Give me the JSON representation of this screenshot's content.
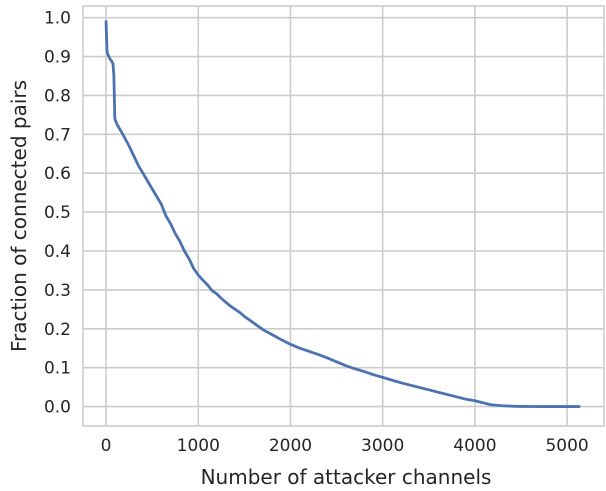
{
  "chart_data": {
    "type": "line",
    "xlabel": "Number of attacker channels",
    "ylabel": "Fraction of connected pairs",
    "xlim": [
      -250,
      5400
    ],
    "ylim": [
      -0.05,
      1.03
    ],
    "xticks": [
      0,
      1000,
      2000,
      3000,
      4000,
      5000
    ],
    "xtick_labels": [
      "0",
      "1000",
      "2000",
      "3000",
      "4000",
      "5000"
    ],
    "yticks": [
      0.0,
      0.1,
      0.2,
      0.3,
      0.4,
      0.5,
      0.6,
      0.7,
      0.8,
      0.9,
      1.0
    ],
    "ytick_labels": [
      "0.0",
      "0.1",
      "0.2",
      "0.3",
      "0.4",
      "0.5",
      "0.6",
      "0.7",
      "0.8",
      "0.9",
      "1.0"
    ],
    "grid": true,
    "series": [
      {
        "color": "#4c72b0",
        "x": [
          0,
          10,
          20,
          40,
          60,
          75,
          85,
          95,
          120,
          170,
          250,
          300,
          350,
          400,
          450,
          500,
          550,
          600,
          650,
          700,
          750,
          800,
          850,
          900,
          950,
          1000,
          1050,
          1100,
          1150,
          1200,
          1250,
          1300,
          1350,
          1400,
          1450,
          1500,
          1600,
          1700,
          1800,
          1900,
          2000,
          2100,
          2200,
          2300,
          2400,
          2500,
          2600,
          2700,
          2800,
          2900,
          3000,
          3100,
          3200,
          3300,
          3400,
          3500,
          3600,
          3700,
          3800,
          3900,
          4000,
          4050,
          4100,
          4150,
          4200,
          4250,
          4300,
          4400,
          4500,
          4600,
          4700,
          4800,
          4900,
          5000,
          5130
        ],
        "y": [
          0.99,
          0.915,
          0.905,
          0.895,
          0.888,
          0.882,
          0.85,
          0.74,
          0.725,
          0.705,
          0.67,
          0.645,
          0.62,
          0.6,
          0.58,
          0.56,
          0.54,
          0.52,
          0.49,
          0.47,
          0.445,
          0.425,
          0.4,
          0.38,
          0.355,
          0.338,
          0.325,
          0.313,
          0.298,
          0.29,
          0.278,
          0.268,
          0.258,
          0.25,
          0.242,
          0.232,
          0.215,
          0.198,
          0.185,
          0.172,
          0.16,
          0.15,
          0.142,
          0.134,
          0.125,
          0.115,
          0.105,
          0.097,
          0.09,
          0.082,
          0.075,
          0.068,
          0.061,
          0.055,
          0.049,
          0.043,
          0.037,
          0.031,
          0.025,
          0.019,
          0.015,
          0.012,
          0.009,
          0.006,
          0.004,
          0.003,
          0.002,
          0.001,
          0.0003,
          0.0001,
          0.0,
          0.0,
          0.0,
          0.0,
          0.0
        ]
      }
    ]
  }
}
